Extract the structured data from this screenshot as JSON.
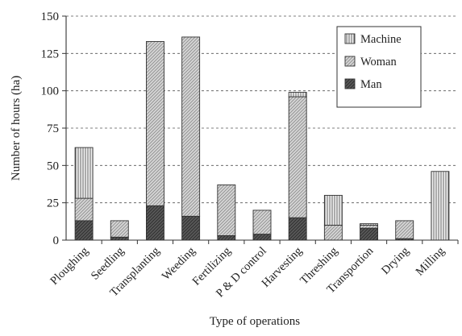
{
  "chart_data": {
    "type": "bar",
    "stacked": true,
    "title": "",
    "xlabel": "Type of operations",
    "ylabel": "Number of hours (ha)",
    "ylim": [
      0,
      150
    ],
    "yticks": [
      0,
      25,
      50,
      75,
      100,
      125,
      150
    ],
    "grid": "horizontal dashed",
    "legend_position": "top-right",
    "categories": [
      "Ploughing",
      "Seedling",
      "Transplanting",
      "Weeding",
      "Fertilizing",
      "P & D control",
      "Harvesting",
      "Threshing",
      "Transportion",
      "Drying",
      "Milling"
    ],
    "series": [
      {
        "name": "Man",
        "pattern": "dark-hatch",
        "values": [
          13,
          2,
          23,
          16,
          3,
          4,
          15,
          0,
          8,
          1,
          0
        ]
      },
      {
        "name": "Woman",
        "pattern": "light-hatch",
        "values": [
          15,
          11,
          110,
          120,
          34,
          16,
          81,
          10,
          2,
          12,
          0
        ]
      },
      {
        "name": "Machine",
        "pattern": "vertical-lines",
        "values": [
          34,
          0,
          0,
          0,
          0,
          0,
          3,
          20,
          1,
          0,
          46
        ]
      }
    ]
  }
}
